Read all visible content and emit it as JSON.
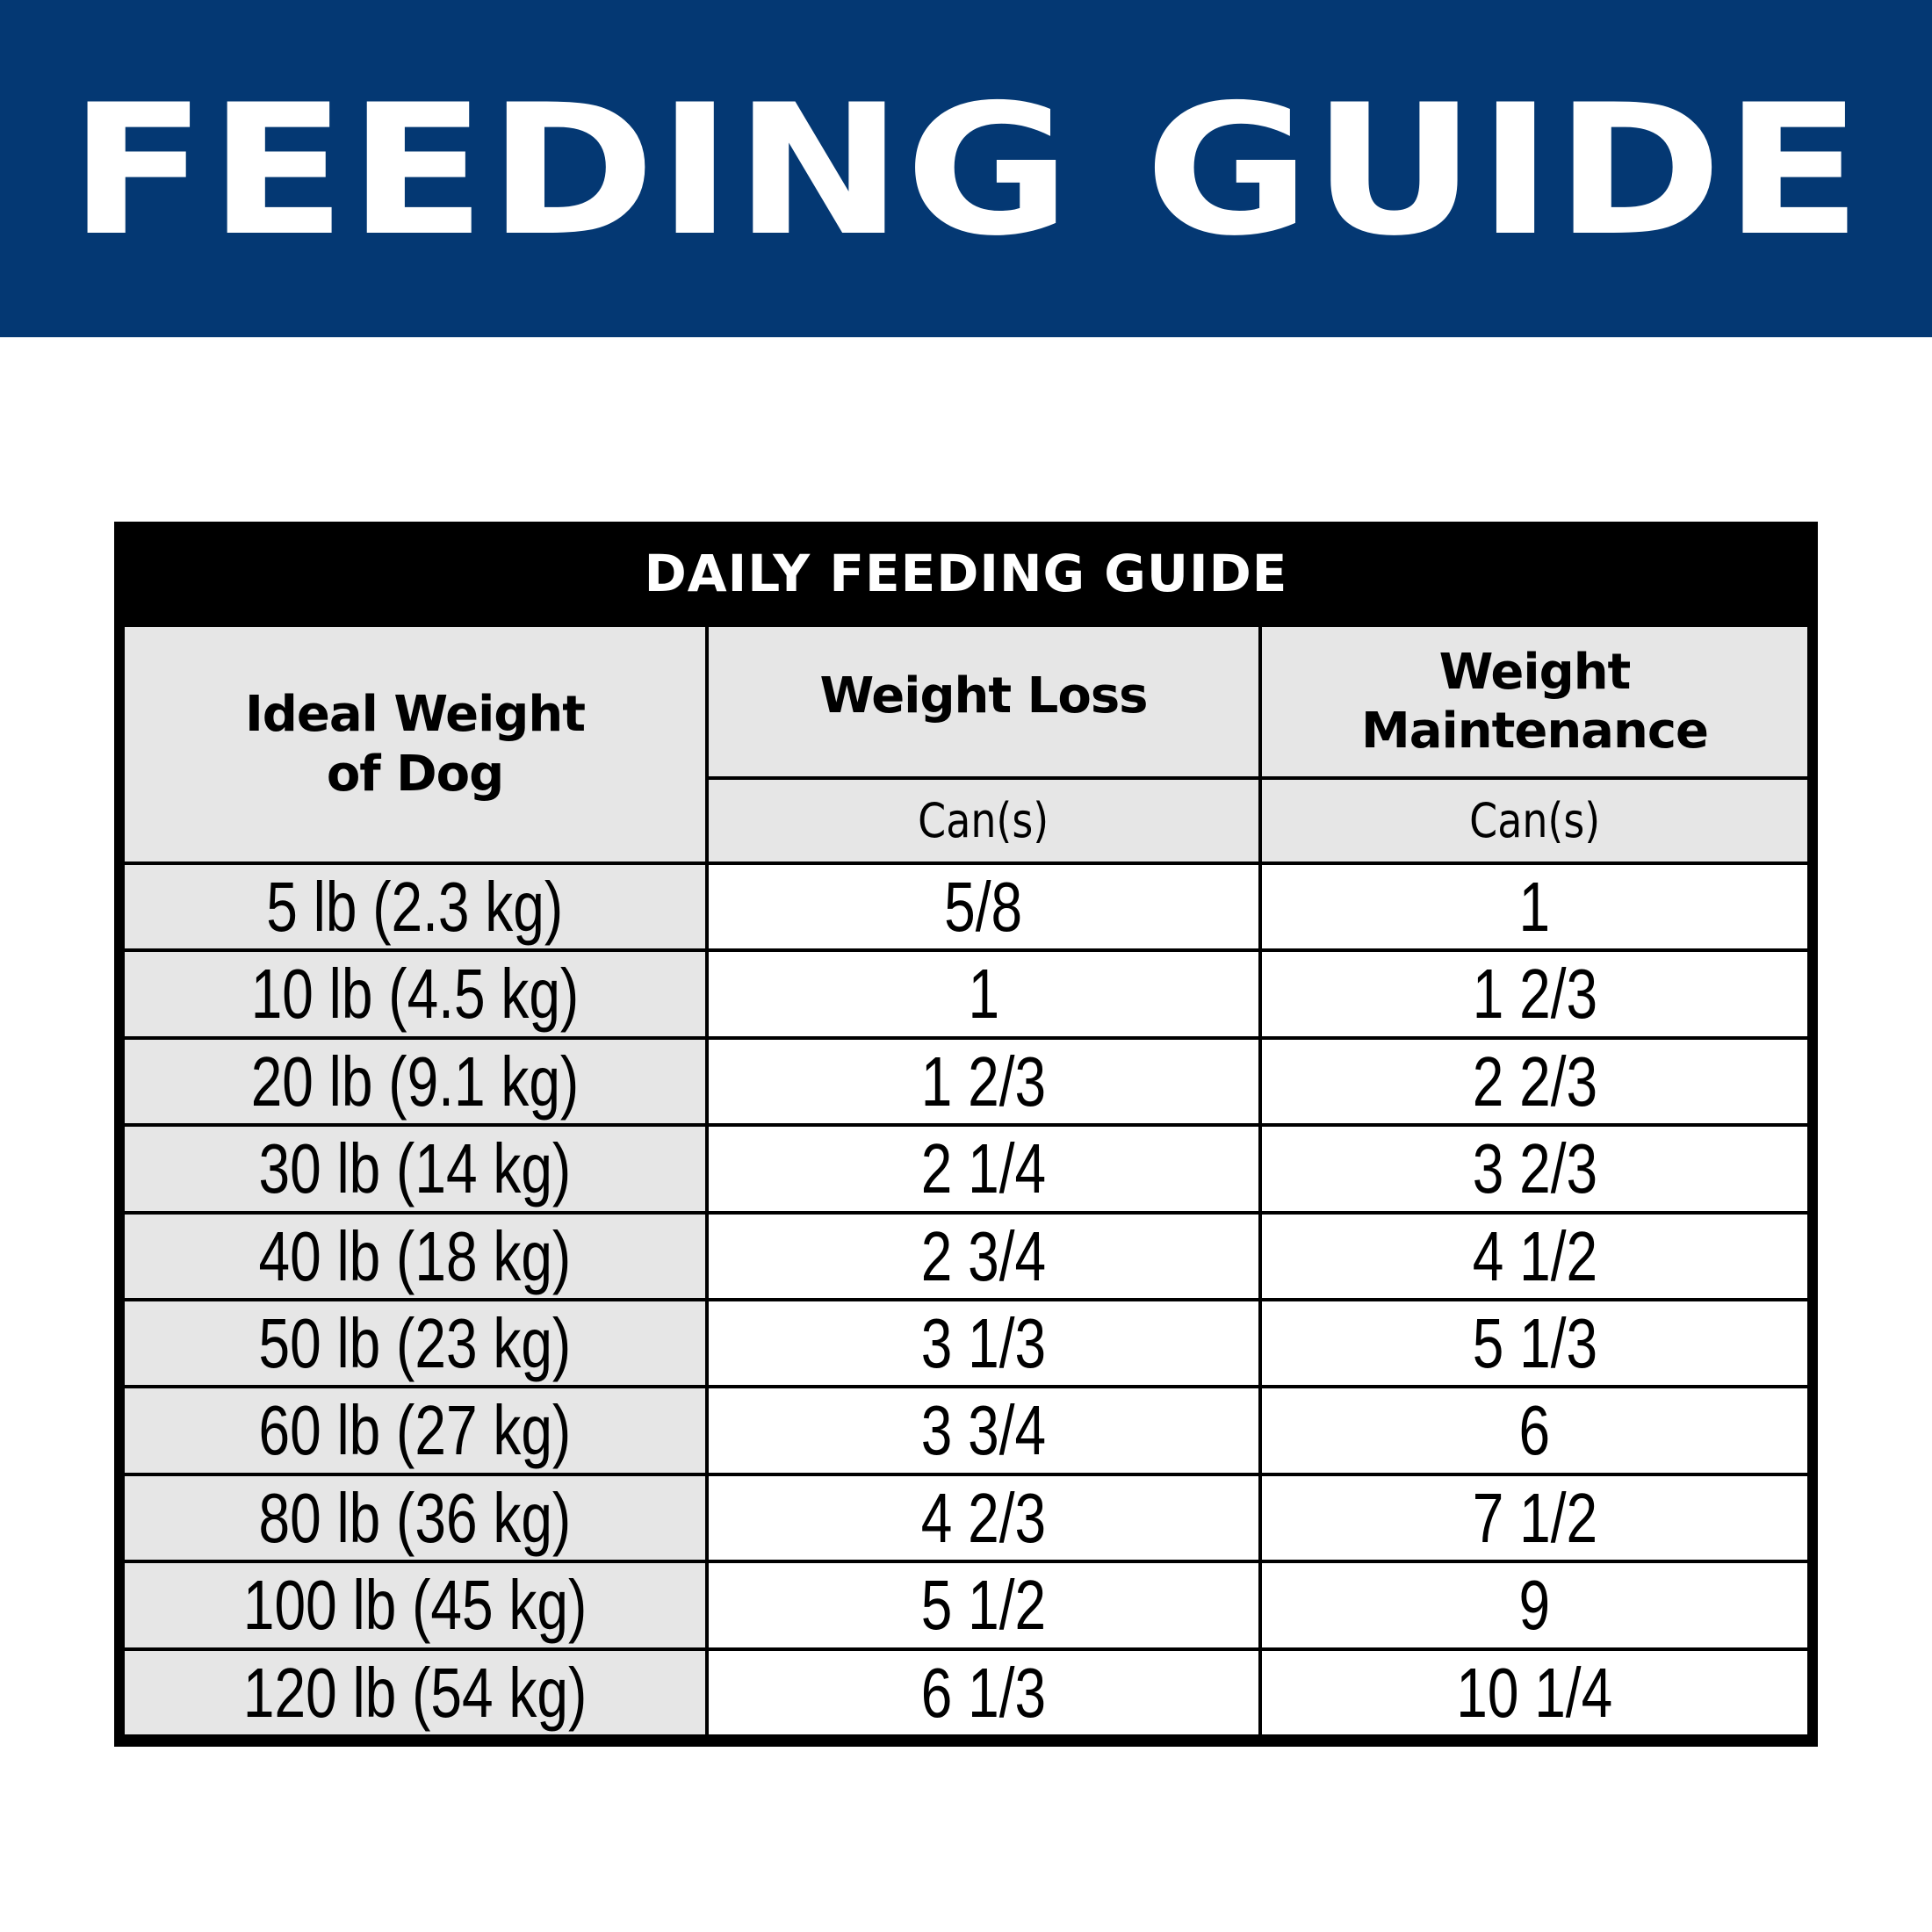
{
  "banner": {
    "title": "FEEDING GUIDE",
    "background_color": "#043873",
    "text_color": "#ffffff"
  },
  "table": {
    "title": "DAILY FEEDING GUIDE",
    "headers": {
      "weight": "Ideal Weight of Dog",
      "weight_line1": "Ideal Weight",
      "weight_line2": "of Dog",
      "loss": "Weight Loss",
      "maintenance": "Weight Maintenance",
      "maintenance_line1": "Weight",
      "maintenance_line2": "Maintenance",
      "loss_unit": "Can(s)",
      "maintenance_unit": "Can(s)"
    },
    "rows": [
      {
        "weight": "5 lb (2.3 kg)",
        "loss": "5/8",
        "maintenance": "1"
      },
      {
        "weight": "10 lb (4.5 kg)",
        "loss": "1",
        "maintenance": "1 2/3"
      },
      {
        "weight": "20 lb (9.1 kg)",
        "loss": "1 2/3",
        "maintenance": "2 2/3"
      },
      {
        "weight": "30 lb (14 kg)",
        "loss": "2 1/4",
        "maintenance": "3 2/3"
      },
      {
        "weight": "40 lb (18 kg)",
        "loss": "2 3/4",
        "maintenance": "4 1/2"
      },
      {
        "weight": "50 lb (23 kg)",
        "loss": "3 1/3",
        "maintenance": "5 1/3"
      },
      {
        "weight": "60 lb (27 kg)",
        "loss": "3 3/4",
        "maintenance": "6"
      },
      {
        "weight": "80 lb (36 kg)",
        "loss": "4 2/3",
        "maintenance": "7 1/2"
      },
      {
        "weight": "100 lb (45 kg)",
        "loss": "5 1/2",
        "maintenance": "9"
      },
      {
        "weight": "120 lb (54 kg)",
        "loss": "6 1/3",
        "maintenance": "10 1/4"
      }
    ],
    "colors": {
      "border": "#000000",
      "header_fill": "#e6e6e6",
      "weight_column_fill": "#e6e6e6",
      "value_fill": "#ffffff"
    }
  }
}
